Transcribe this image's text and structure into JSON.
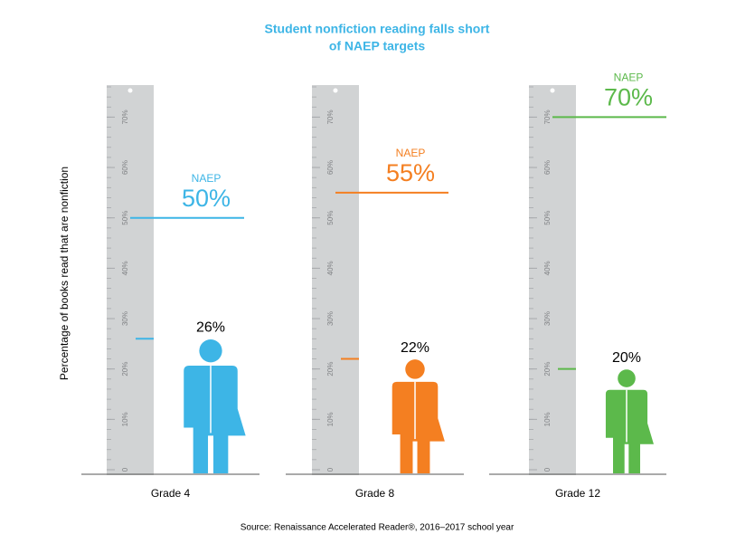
{
  "chart_data": {
    "type": "pictograph",
    "title": [
      "Student nonfiction reading falls short",
      "of NAEP targets"
    ],
    "y_label": "Percentage of books read that are nonfiction",
    "source": "Source: Renaissance Accelerated Reader®, 2016–2017 school year",
    "categories": [
      "Grade 4",
      "Grade 8",
      "Grade 12"
    ],
    "colors": [
      "#3db5e6",
      "#f47f21",
      "#5cb94b"
    ],
    "values": [
      26,
      22,
      20
    ],
    "value_labels": [
      "26%",
      "22%",
      "20%"
    ],
    "series": [
      {
        "name": "NAEP",
        "values": [
          50,
          55,
          70
        ],
        "value_labels": [
          "50%",
          "55%",
          "70%"
        ]
      }
    ],
    "ylim": [
      0,
      76
    ],
    "yticks": [
      0,
      {
        "value": 10,
        "label": "10%"
      },
      {
        "value": 20,
        "label": "20%"
      },
      {
        "value": 30,
        "label": "30%"
      },
      {
        "value": 40,
        "label": "40%"
      },
      {
        "value": 50,
        "label": "50%"
      },
      {
        "value": 60,
        "label": "60%"
      },
      {
        "value": 70,
        "label": "70%"
      }
    ]
  }
}
